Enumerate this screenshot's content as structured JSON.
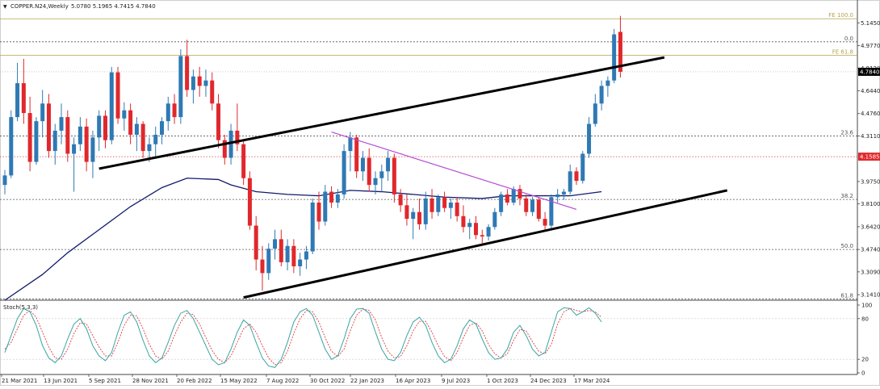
{
  "header": {
    "dropdown_glyph": "▼",
    "symbol": "COPPER.N24,Weekly",
    "ohlc": "5.0780 5.1965 4.7415 4.7840"
  },
  "stoch_label": "Stoch(5,3,3)",
  "chart_data": {
    "type": "candlestick",
    "title": "COPPER.N24,Weekly",
    "ohlc_last": {
      "open": 5.078,
      "high": 5.1965,
      "low": 4.7415,
      "close": 4.784
    },
    "price_axis_ticks": [
      "5.1450",
      "4.9770",
      "4.8120",
      "4.6440",
      "4.4760",
      "4.3110",
      "3.9750",
      "3.8100",
      "3.6420",
      "3.4740",
      "3.3090",
      "3.1410"
    ],
    "price_range": [
      3.1,
      5.23
    ],
    "date_axis_ticks": [
      "21 Mar 2021",
      "13 Jun 2021",
      "5 Sep 2021",
      "28 Nov 2021",
      "20 Feb 2022",
      "15 May 2022",
      "7 Aug 2022",
      "30 Oct 2022",
      "22 Jan 2023",
      "16 Apr 2023",
      "9 Jul 2023",
      "1 Oct 2023",
      "24 Dec 2023",
      "17 Mar 2024"
    ],
    "current_price": {
      "label": "4.7840",
      "value": 4.784
    },
    "red_level": {
      "label": "4.1585",
      "value": 4.1585
    },
    "fib_levels": [
      {
        "label": "FE 100.0",
        "value": 5.175,
        "color": "#b5a24a",
        "style": "solid"
      },
      {
        "label": "FE 61.8",
        "value": 4.905,
        "color": "#b5a24a",
        "style": "solid"
      },
      {
        "label": "0.0",
        "value": 5.005,
        "color": "#555555",
        "style": "dashed"
      },
      {
        "label": "23.6",
        "value": 4.311,
        "color": "#555555",
        "style": "dashed"
      },
      {
        "label": "38.2",
        "value": 3.843,
        "color": "#555555",
        "style": "dashed"
      },
      {
        "label": "50.0",
        "value": 3.474,
        "color": "#555555",
        "style": "dashed"
      },
      {
        "label": "61.8",
        "value": 3.11,
        "color": "#555555",
        "style": "dashed"
      }
    ],
    "channel_upper": {
      "from": [
        15,
        4.07
      ],
      "to": [
        105,
        4.89
      ]
    },
    "channel_lower": {
      "from": [
        38,
        3.12
      ],
      "to": [
        115,
        3.91
      ]
    },
    "purple_trendline": {
      "from": [
        52,
        4.34
      ],
      "to": [
        91,
        3.77
      ]
    },
    "moving_average_points": [
      [
        0,
        3.1
      ],
      [
        6,
        3.29
      ],
      [
        10,
        3.45
      ],
      [
        15,
        3.62
      ],
      [
        20,
        3.79
      ],
      [
        25,
        3.93
      ],
      [
        29,
        4.0
      ],
      [
        34,
        3.99
      ],
      [
        36,
        3.95
      ],
      [
        40,
        3.9
      ],
      [
        45,
        3.88
      ],
      [
        50,
        3.87
      ],
      [
        55,
        3.91
      ],
      [
        60,
        3.9
      ],
      [
        65,
        3.88
      ],
      [
        70,
        3.86
      ],
      [
        76,
        3.85
      ],
      [
        80,
        3.87
      ],
      [
        85,
        3.87
      ],
      [
        90,
        3.87
      ],
      [
        95,
        3.9
      ]
    ],
    "candles": [
      [
        3.95,
        4.06,
        3.88,
        4.02
      ],
      [
        4.02,
        4.5,
        4.0,
        4.45
      ],
      [
        4.45,
        4.85,
        4.42,
        4.7
      ],
      [
        4.7,
        4.88,
        4.4,
        4.48
      ],
      [
        4.48,
        4.6,
        4.05,
        4.12
      ],
      [
        4.12,
        4.45,
        4.1,
        4.42
      ],
      [
        4.42,
        4.65,
        4.3,
        4.55
      ],
      [
        4.55,
        4.62,
        4.15,
        4.2
      ],
      [
        4.2,
        4.4,
        4.1,
        4.35
      ],
      [
        4.35,
        4.55,
        4.25,
        4.45
      ],
      [
        4.45,
        4.5,
        4.12,
        4.18
      ],
      [
        4.18,
        4.3,
        3.9,
        4.25
      ],
      [
        4.25,
        4.45,
        4.2,
        4.38
      ],
      [
        4.38,
        4.44,
        4.05,
        4.12
      ],
      [
        4.12,
        4.35,
        4.0,
        4.3
      ],
      [
        4.3,
        4.5,
        4.2,
        4.46
      ],
      [
        4.46,
        4.5,
        4.22,
        4.28
      ],
      [
        4.28,
        4.82,
        4.25,
        4.78
      ],
      [
        4.78,
        4.82,
        4.4,
        4.44
      ],
      [
        4.44,
        4.56,
        4.35,
        4.5
      ],
      [
        4.5,
        4.55,
        4.25,
        4.32
      ],
      [
        4.32,
        4.45,
        4.2,
        4.4
      ],
      [
        4.4,
        4.42,
        4.15,
        4.2
      ],
      [
        4.2,
        4.3,
        4.12,
        4.25
      ],
      [
        4.25,
        4.38,
        4.15,
        4.32
      ],
      [
        4.32,
        4.45,
        4.25,
        4.42
      ],
      [
        4.42,
        4.6,
        4.35,
        4.55
      ],
      [
        4.55,
        4.62,
        4.4,
        4.45
      ],
      [
        4.45,
        4.95,
        4.4,
        4.9
      ],
      [
        4.9,
        5.02,
        4.6,
        4.65
      ],
      [
        4.65,
        4.8,
        4.55,
        4.75
      ],
      [
        4.75,
        4.82,
        4.6,
        4.68
      ],
      [
        4.68,
        4.8,
        4.6,
        4.72
      ],
      [
        4.72,
        4.78,
        4.5,
        4.55
      ],
      [
        4.55,
        4.62,
        4.22,
        4.28
      ],
      [
        4.28,
        4.32,
        4.1,
        4.15
      ],
      [
        4.15,
        4.4,
        4.1,
        4.35
      ],
      [
        4.35,
        4.55,
        4.2,
        4.25
      ],
      [
        4.25,
        4.28,
        3.95,
        4.0
      ],
      [
        4.0,
        4.05,
        3.62,
        3.65
      ],
      [
        3.65,
        3.72,
        3.32,
        3.4
      ],
      [
        3.4,
        3.5,
        3.17,
        3.3
      ],
      [
        3.3,
        3.52,
        3.25,
        3.48
      ],
      [
        3.48,
        3.62,
        3.4,
        3.55
      ],
      [
        3.55,
        3.62,
        3.35,
        3.38
      ],
      [
        3.38,
        3.55,
        3.32,
        3.5
      ],
      [
        3.5,
        3.55,
        3.3,
        3.35
      ],
      [
        3.35,
        3.45,
        3.28,
        3.4
      ],
      [
        3.4,
        3.5,
        3.33,
        3.46
      ],
      [
        3.46,
        3.85,
        3.44,
        3.82
      ],
      [
        3.82,
        3.9,
        3.62,
        3.68
      ],
      [
        3.68,
        3.95,
        3.65,
        3.9
      ],
      [
        3.9,
        3.94,
        3.78,
        3.82
      ],
      [
        3.82,
        3.92,
        3.78,
        3.88
      ],
      [
        3.88,
        4.25,
        3.85,
        4.2
      ],
      [
        4.2,
        4.34,
        4.05,
        4.3
      ],
      [
        4.3,
        4.32,
        4.0,
        4.05
      ],
      [
        4.05,
        4.2,
        3.98,
        4.15
      ],
      [
        4.15,
        4.22,
        3.9,
        3.95
      ],
      [
        3.95,
        4.05,
        3.88,
        4.0
      ],
      [
        4.0,
        4.1,
        3.9,
        4.05
      ],
      [
        4.05,
        4.2,
        3.98,
        4.15
      ],
      [
        4.15,
        4.18,
        3.82,
        3.88
      ],
      [
        3.88,
        3.92,
        3.75,
        3.8
      ],
      [
        3.8,
        3.88,
        3.65,
        3.7
      ],
      [
        3.7,
        3.78,
        3.55,
        3.75
      ],
      [
        3.75,
        3.85,
        3.62,
        3.66
      ],
      [
        3.66,
        3.9,
        3.62,
        3.85
      ],
      [
        3.85,
        3.92,
        3.7,
        3.75
      ],
      [
        3.75,
        3.88,
        3.72,
        3.86
      ],
      [
        3.86,
        3.9,
        3.75,
        3.78
      ],
      [
        3.78,
        3.85,
        3.7,
        3.82
      ],
      [
        3.82,
        3.86,
        3.68,
        3.72
      ],
      [
        3.72,
        3.8,
        3.6,
        3.64
      ],
      [
        3.64,
        3.7,
        3.55,
        3.67
      ],
      [
        3.67,
        3.72,
        3.55,
        3.58
      ],
      [
        3.58,
        3.62,
        3.52,
        3.57
      ],
      [
        3.57,
        3.66,
        3.54,
        3.64
      ],
      [
        3.64,
        3.78,
        3.62,
        3.75
      ],
      [
        3.75,
        3.9,
        3.72,
        3.88
      ],
      [
        3.88,
        3.92,
        3.8,
        3.82
      ],
      [
        3.82,
        3.94,
        3.8,
        3.92
      ],
      [
        3.92,
        3.95,
        3.8,
        3.85
      ],
      [
        3.85,
        3.88,
        3.72,
        3.75
      ],
      [
        3.75,
        3.86,
        3.72,
        3.84
      ],
      [
        3.84,
        3.86,
        3.68,
        3.7
      ],
      [
        3.7,
        3.75,
        3.62,
        3.65
      ],
      [
        3.65,
        3.88,
        3.63,
        3.86
      ],
      [
        3.86,
        3.92,
        3.82,
        3.88
      ],
      [
        3.88,
        3.92,
        3.84,
        3.9
      ],
      [
        3.9,
        4.1,
        3.88,
        4.05
      ],
      [
        4.05,
        4.08,
        3.95,
        3.98
      ],
      [
        3.98,
        4.2,
        3.96,
        4.18
      ],
      [
        4.18,
        4.45,
        4.15,
        4.4
      ],
      [
        4.4,
        4.62,
        4.38,
        4.55
      ],
      [
        4.55,
        4.72,
        4.5,
        4.68
      ],
      [
        4.68,
        4.75,
        4.6,
        4.72
      ],
      [
        4.72,
        5.1,
        4.7,
        5.06
      ],
      [
        5.078,
        5.1965,
        4.7415,
        4.784
      ]
    ],
    "stochastic": {
      "label": "Stoch(5,3,3)",
      "levels": [
        80,
        20
      ],
      "axis_ticks": [
        "100",
        "80",
        "20",
        "0"
      ],
      "main_color": "#3aa4a4",
      "signal_color": "#e03a3a",
      "main": [
        30,
        55,
        80,
        95,
        90,
        70,
        40,
        22,
        15,
        25,
        50,
        72,
        80,
        65,
        40,
        25,
        18,
        30,
        60,
        85,
        90,
        75,
        48,
        25,
        15,
        22,
        45,
        70,
        88,
        92,
        80,
        60,
        40,
        20,
        12,
        15,
        35,
        60,
        78,
        70,
        45,
        22,
        10,
        8,
        20,
        45,
        75,
        90,
        95,
        85,
        60,
        35,
        20,
        25,
        50,
        80,
        94,
        95,
        88,
        60,
        35,
        20,
        18,
        30,
        55,
        75,
        82,
        70,
        45,
        25,
        15,
        20,
        40,
        65,
        78,
        72,
        50,
        30,
        20,
        22,
        35,
        60,
        70,
        55,
        35,
        25,
        30,
        60,
        90,
        96,
        95,
        85,
        90,
        96,
        88,
        75
      ],
      "signal": [
        35,
        45,
        65,
        85,
        92,
        82,
        60,
        38,
        22,
        20,
        35,
        58,
        74,
        72,
        55,
        38,
        25,
        25,
        45,
        70,
        85,
        84,
        65,
        42,
        25,
        20,
        32,
        55,
        75,
        88,
        86,
        72,
        52,
        33,
        20,
        15,
        25,
        45,
        65,
        72,
        60,
        40,
        22,
        12,
        15,
        32,
        58,
        80,
        92,
        90,
        75,
        52,
        32,
        24,
        35,
        62,
        85,
        94,
        92,
        78,
        52,
        32,
        22,
        24,
        40,
        62,
        76,
        76,
        60,
        40,
        24,
        18,
        30,
        52,
        70,
        74,
        62,
        42,
        28,
        22,
        28,
        48,
        64,
        62,
        46,
        32,
        28,
        42,
        72,
        90,
        95,
        92,
        90,
        92,
        90,
        82
      ]
    }
  }
}
